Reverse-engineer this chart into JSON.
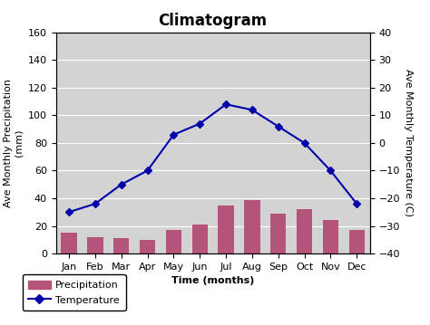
{
  "title": "Climatogram",
  "months": [
    "Jan",
    "Feb",
    "Mar",
    "Apr",
    "May",
    "Jun",
    "Jul",
    "Aug",
    "Sep",
    "Oct",
    "Nov",
    "Dec"
  ],
  "precipitation": [
    15,
    12,
    11,
    10,
    17,
    21,
    35,
    39,
    29,
    32,
    24,
    17
  ],
  "temperature": [
    -25,
    -22,
    -15,
    -10,
    3,
    7,
    14,
    12,
    6,
    0,
    -10,
    -22
  ],
  "bar_color": "#b5547a",
  "line_color": "#0000aa",
  "line_marker": "D",
  "xlabel": "Time (months)",
  "ylabel_left": "Ave Monthly Precipitation\n(mm)",
  "ylabel_right": "Ave Monthly Temperature (C)",
  "ylim_left": [
    0,
    160
  ],
  "ylim_right": [
    -40,
    40
  ],
  "yticks_left": [
    0,
    20,
    40,
    60,
    80,
    100,
    120,
    140,
    160
  ],
  "yticks_right": [
    -40,
    -30,
    -20,
    -10,
    0,
    10,
    20,
    30,
    40
  ],
  "bg_color": "#d3d3d3",
  "fig_color": "#ffffff",
  "legend_precip_label": "Precipitation",
  "legend_temp_label": "Temperature",
  "title_fontsize": 12,
  "axis_label_fontsize": 8,
  "tick_fontsize": 8,
  "legend_fontsize": 8
}
